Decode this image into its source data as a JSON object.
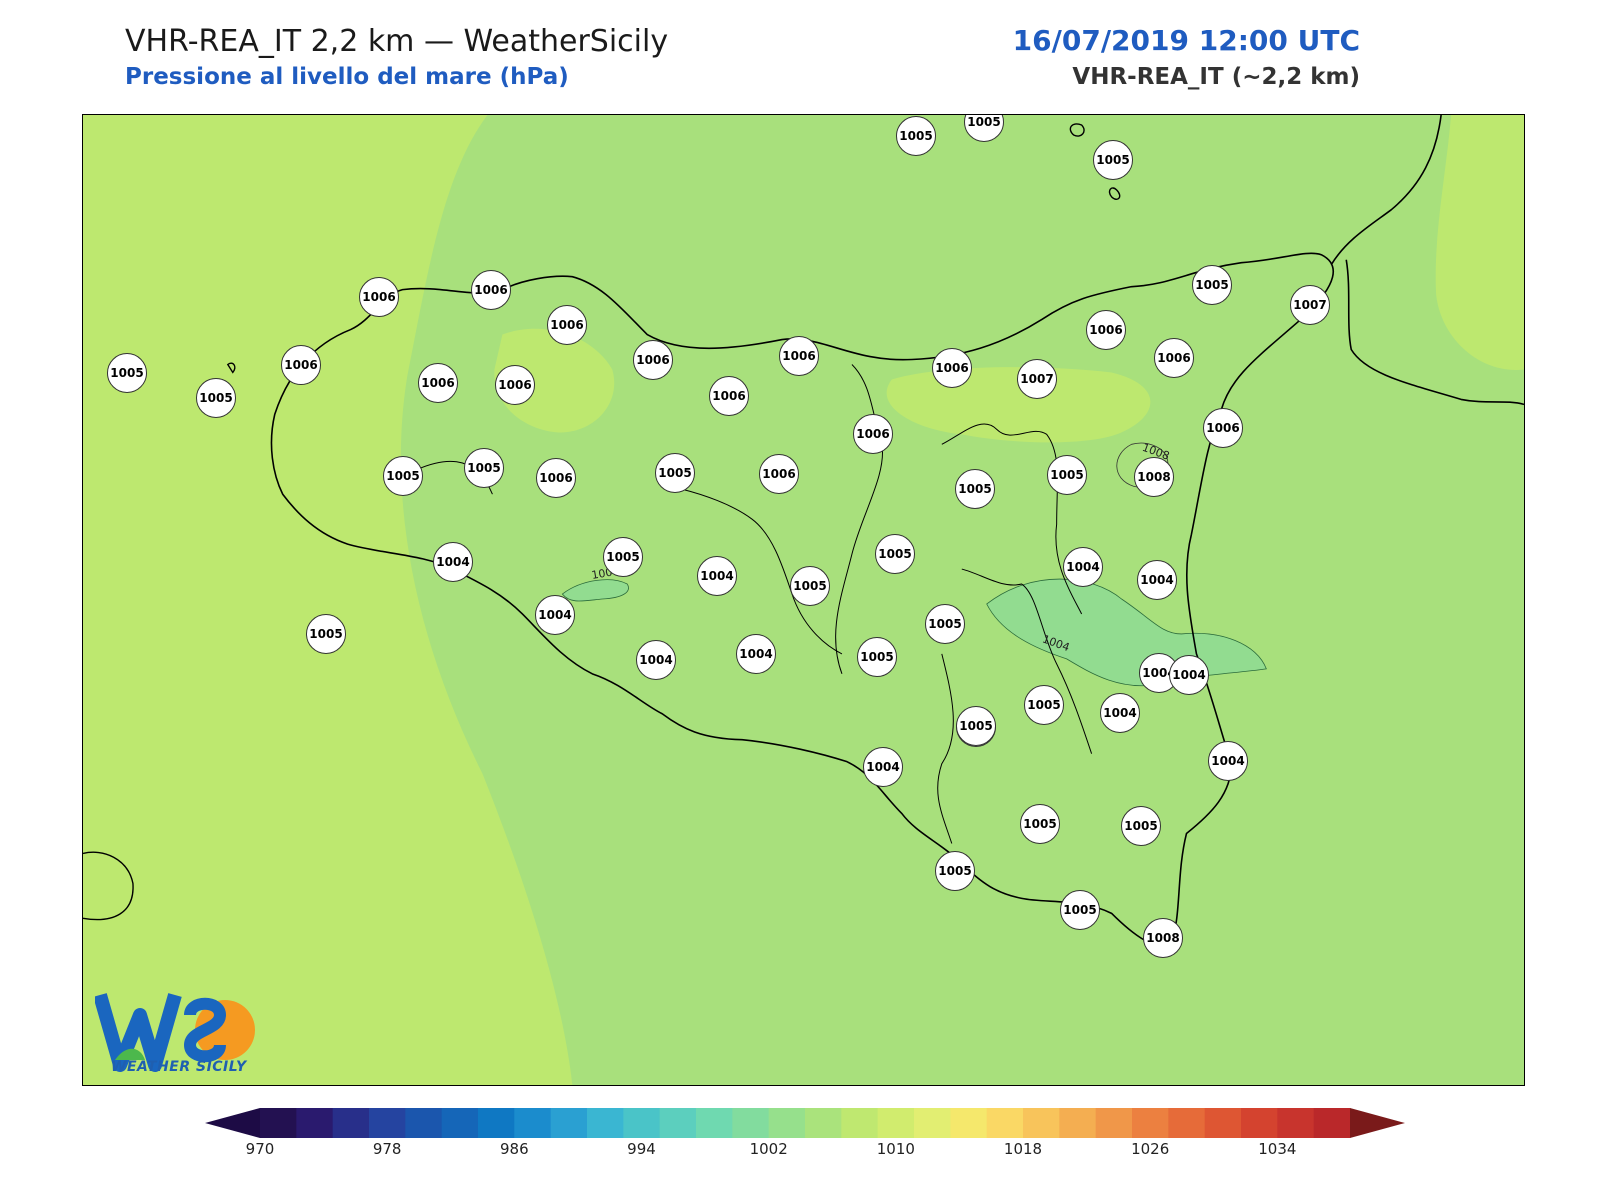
{
  "header": {
    "title_left": "VHR-REA_IT 2,2 km — WeatherSicily",
    "subtitle_left": "Pressione al livello del mare (hPa)",
    "title_right": "16/07/2019 12:00 UTC",
    "subtitle_right": "VHR-REA_IT (~2,2 km)",
    "accent_color": "#1f5cc0"
  },
  "map": {
    "contour_labels": [
      "1008",
      "1004",
      "1004"
    ],
    "fill_colors": {
      "land_lowest": "#92dc90",
      "base": "#a8e07c",
      "higher": "#bde86f"
    },
    "stations": [
      {
        "value": "1005"
      },
      {
        "value": "1005"
      },
      {
        "value": "1005"
      },
      {
        "value": "1006"
      },
      {
        "value": "1006"
      },
      {
        "value": "1006"
      },
      {
        "value": "1005"
      },
      {
        "value": "1005"
      },
      {
        "value": "1007"
      },
      {
        "value": "1006"
      },
      {
        "value": "1006"
      },
      {
        "value": "1006"
      },
      {
        "value": "1006"
      },
      {
        "value": "1006"
      },
      {
        "value": "1006"
      },
      {
        "value": "1006"
      },
      {
        "value": "1007"
      },
      {
        "value": "1006"
      },
      {
        "value": "1006"
      },
      {
        "value": "1005"
      },
      {
        "value": "1006"
      },
      {
        "value": "1006"
      },
      {
        "value": "1005"
      },
      {
        "value": "1005"
      },
      {
        "value": "1005"
      },
      {
        "value": "1008"
      },
      {
        "value": "1005"
      },
      {
        "value": "1005"
      },
      {
        "value": "1006"
      },
      {
        "value": "1005"
      },
      {
        "value": "1006"
      },
      {
        "value": "1005"
      },
      {
        "value": "1004"
      },
      {
        "value": "1004"
      },
      {
        "value": "1004"
      },
      {
        "value": "1004"
      },
      {
        "value": "1005"
      },
      {
        "value": "1005"
      },
      {
        "value": "1004"
      },
      {
        "value": "1005"
      },
      {
        "value": "1004"
      },
      {
        "value": "1004"
      },
      {
        "value": "1004"
      },
      {
        "value": "1005"
      },
      {
        "value": "1004"
      },
      {
        "value": "1005"
      },
      {
        "value": "1005"
      },
      {
        "value": "1004"
      },
      {
        "value": "1004"
      },
      {
        "value": "1004"
      },
      {
        "value": "1005"
      },
      {
        "value": "1005"
      },
      {
        "value": "1005"
      },
      {
        "value": "1005"
      },
      {
        "value": "1005"
      },
      {
        "value": "1008"
      }
    ]
  },
  "logo": {
    "text": "WEATHER SICILY",
    "icon": "weathersicily-logo-icon"
  },
  "colorbar": {
    "ticks": [
      "970",
      "978",
      "986",
      "994",
      "1002",
      "1010",
      "1018",
      "1026",
      "1034"
    ],
    "colors": [
      "#231151",
      "#2a1a6e",
      "#282f8a",
      "#2544a0",
      "#1b56ad",
      "#1566b8",
      "#0f78c3",
      "#1b8ccd",
      "#2aa0d2",
      "#3ab6d2",
      "#4ac4c8",
      "#5ccfbe",
      "#6fd9b0",
      "#82dc9e",
      "#96e08c",
      "#aae37c",
      "#bfe870",
      "#d1ec6e",
      "#e2ee72",
      "#f5e86c",
      "#fad865",
      "#f8c45b",
      "#f4ae51",
      "#f09749",
      "#ec8040",
      "#e66b39",
      "#de5633",
      "#d4432f",
      "#c8342d",
      "#ba282a"
    ],
    "under_color": "#1d0b45",
    "over_color": "#7a1a1a"
  }
}
